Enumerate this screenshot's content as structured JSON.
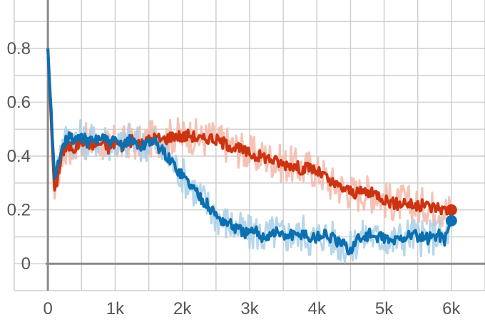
{
  "chart_data": {
    "type": "line",
    "title": "",
    "xlabel": "",
    "ylabel": "",
    "xlim": [
      -500,
      6500
    ],
    "ylim": [
      -0.1,
      0.98
    ],
    "grid": true,
    "x_ticks": [
      {
        "value": 0,
        "label": "0"
      },
      {
        "value": 1000,
        "label": "1k"
      },
      {
        "value": 2000,
        "label": "2k"
      },
      {
        "value": 3000,
        "label": "3k"
      },
      {
        "value": 4000,
        "label": "4k"
      },
      {
        "value": 5000,
        "label": "5k"
      },
      {
        "value": 6000,
        "label": "6k"
      }
    ],
    "y_ticks": [
      {
        "value": 0,
        "label": "0"
      },
      {
        "value": 0.2,
        "label": "0.2"
      },
      {
        "value": 0.4,
        "label": "0.4"
      },
      {
        "value": 0.6,
        "label": "0.6"
      },
      {
        "value": 0.8,
        "label": "0.8"
      }
    ],
    "series": [
      {
        "color_smoothed": "#cc3311",
        "color_raw": "#f3b9a8",
        "x": [
          0,
          100,
          200,
          300,
          400,
          500,
          600,
          700,
          800,
          900,
          1000,
          1100,
          1200,
          1300,
          1400,
          1500,
          1600,
          1700,
          1800,
          1900,
          2000,
          2100,
          2200,
          2300,
          2400,
          2500,
          2600,
          2700,
          2800,
          2900,
          3000,
          3100,
          3200,
          3300,
          3400,
          3500,
          3600,
          3700,
          3800,
          3900,
          4000,
          4100,
          4200,
          4300,
          4400,
          4500,
          4600,
          4700,
          4800,
          4900,
          5000,
          5100,
          5200,
          5300,
          5400,
          5500,
          5600,
          5700,
          5800,
          5900,
          6000
        ],
        "values": [
          0.8,
          0.26,
          0.4,
          0.44,
          0.43,
          0.46,
          0.45,
          0.44,
          0.45,
          0.43,
          0.45,
          0.44,
          0.46,
          0.45,
          0.44,
          0.46,
          0.47,
          0.46,
          0.47,
          0.48,
          0.47,
          0.48,
          0.47,
          0.46,
          0.47,
          0.46,
          0.45,
          0.44,
          0.43,
          0.42,
          0.41,
          0.4,
          0.4,
          0.39,
          0.38,
          0.37,
          0.37,
          0.36,
          0.35,
          0.36,
          0.34,
          0.33,
          0.3,
          0.29,
          0.28,
          0.27,
          0.26,
          0.27,
          0.26,
          0.26,
          0.24,
          0.23,
          0.22,
          0.23,
          0.22,
          0.21,
          0.22,
          0.21,
          0.21,
          0.2,
          0.2
        ]
      },
      {
        "color_smoothed": "#0b6fb0",
        "color_raw": "#a9cfe8",
        "x": [
          0,
          100,
          200,
          300,
          400,
          500,
          600,
          700,
          800,
          900,
          1000,
          1100,
          1200,
          1300,
          1400,
          1500,
          1600,
          1700,
          1800,
          1900,
          2000,
          2100,
          2200,
          2300,
          2400,
          2500,
          2600,
          2700,
          2800,
          2900,
          3000,
          3100,
          3200,
          3300,
          3400,
          3500,
          3600,
          3700,
          3800,
          3900,
          4000,
          4100,
          4200,
          4300,
          4400,
          4500,
          4600,
          4700,
          4800,
          4900,
          5000,
          5100,
          5200,
          5300,
          5400,
          5500,
          5600,
          5700,
          5800,
          5900,
          6000
        ],
        "values": [
          0.8,
          0.3,
          0.44,
          0.47,
          0.46,
          0.47,
          0.45,
          0.46,
          0.47,
          0.45,
          0.45,
          0.44,
          0.46,
          0.45,
          0.43,
          0.46,
          0.45,
          0.42,
          0.39,
          0.36,
          0.33,
          0.3,
          0.27,
          0.24,
          0.21,
          0.18,
          0.16,
          0.15,
          0.13,
          0.12,
          0.11,
          0.12,
          0.1,
          0.11,
          0.12,
          0.1,
          0.11,
          0.1,
          0.12,
          0.09,
          0.1,
          0.11,
          0.1,
          0.08,
          0.07,
          0.05,
          0.09,
          0.1,
          0.11,
          0.09,
          0.1,
          0.08,
          0.09,
          0.1,
          0.11,
          0.1,
          0.09,
          0.1,
          0.11,
          0.09,
          0.16
        ]
      }
    ]
  }
}
